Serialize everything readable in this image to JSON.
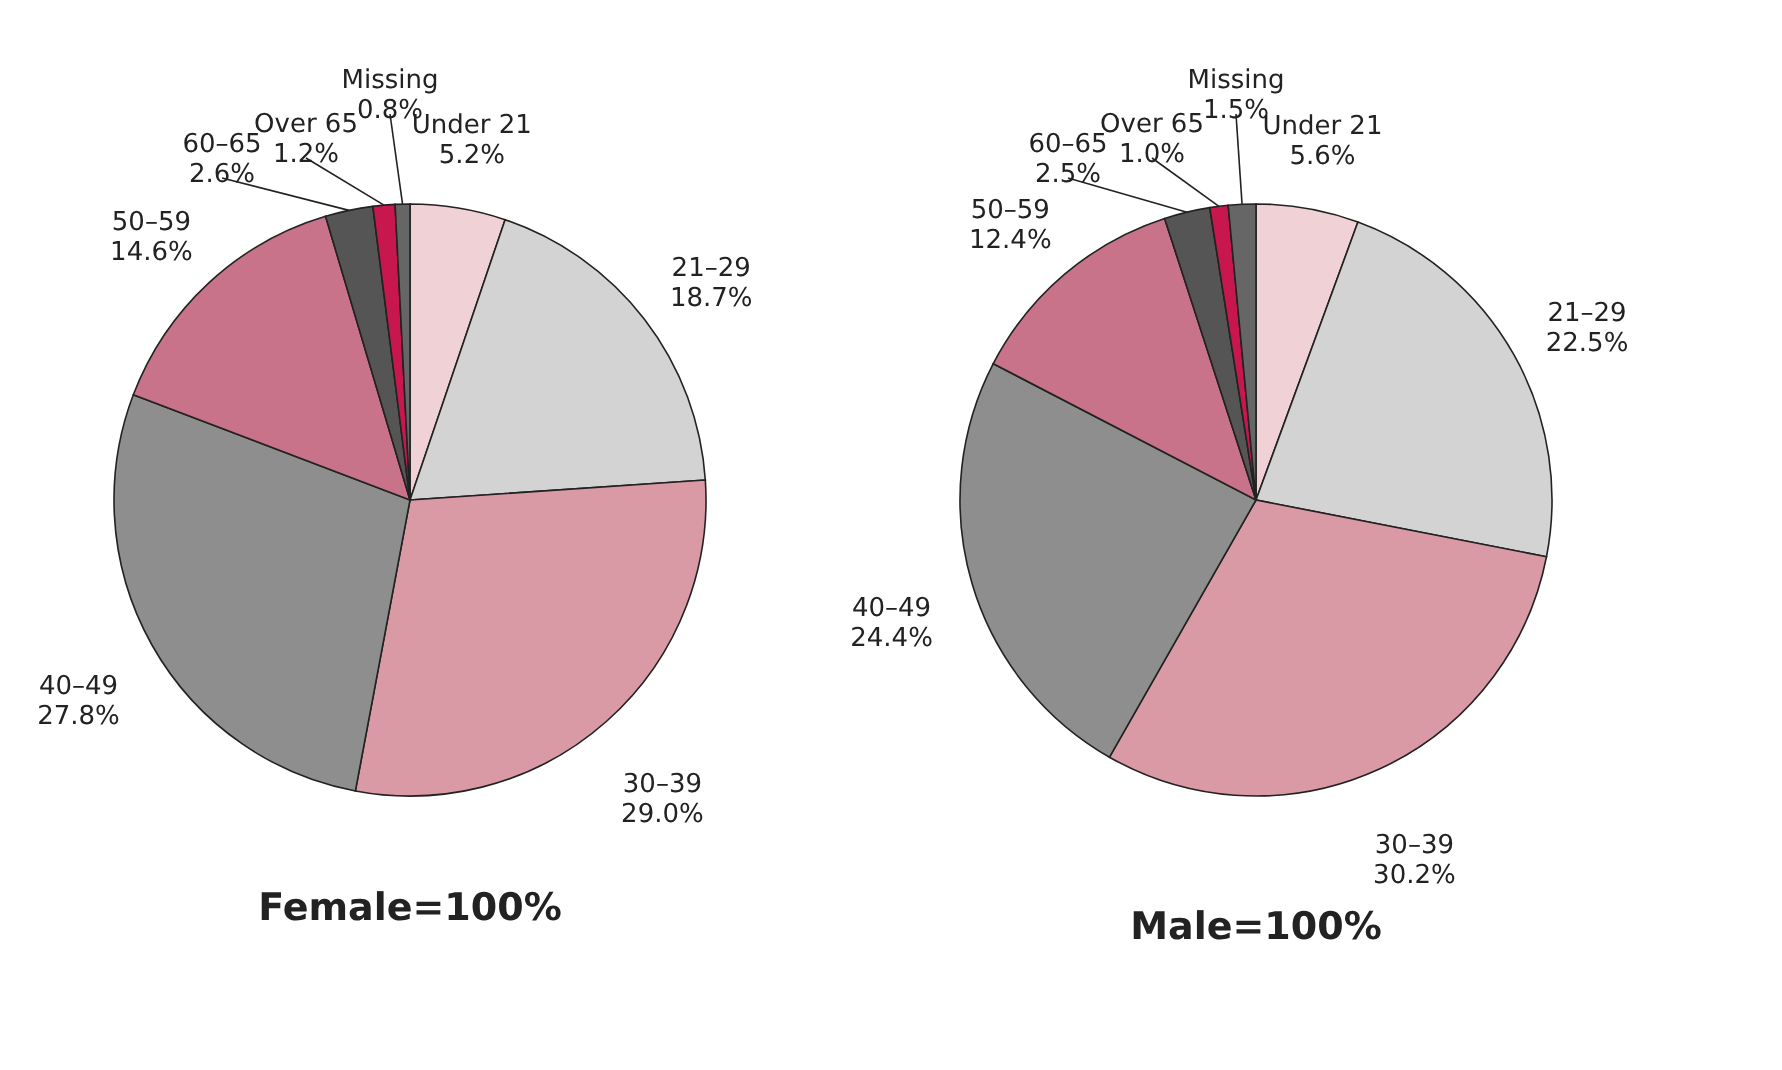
{
  "chart_data": [
    {
      "type": "pie",
      "title": "Female=100%",
      "categories": [
        "Under 21",
        "21–29",
        "30–39",
        "40–49",
        "50–59",
        "60–65",
        "Over 65",
        "Missing"
      ],
      "values": [
        5.2,
        18.7,
        29.0,
        27.8,
        14.6,
        2.6,
        1.2,
        0.8
      ],
      "value_labels": [
        "5.2%",
        "18.7%",
        "29.0%",
        "27.8%",
        "14.6%",
        "2.6%",
        "1.2%",
        "0.8%"
      ],
      "colors": [
        "#f0d2d6",
        "#d3d3d3",
        "#d99aa6",
        "#8e8e8e",
        "#c8738a",
        "#555555",
        "#c8174f",
        "#666666"
      ],
      "legend": false
    },
    {
      "type": "pie",
      "title": "Male=100%",
      "categories": [
        "Under 21",
        "21–29",
        "30–39",
        "40–49",
        "50–59",
        "60–65",
        "Over 65",
        "Missing"
      ],
      "values": [
        5.6,
        22.5,
        30.2,
        24.4,
        12.4,
        2.5,
        1.0,
        1.5
      ],
      "value_labels": [
        "5.6%",
        "22.5%",
        "30.2%",
        "24.4%",
        "12.4%",
        "2.5%",
        "1.0%",
        "1.5%"
      ],
      "colors": [
        "#f0d2d6",
        "#d3d3d3",
        "#d99aa6",
        "#8e8e8e",
        "#c8738a",
        "#555555",
        "#c8174f",
        "#666666"
      ],
      "legend": false
    }
  ]
}
